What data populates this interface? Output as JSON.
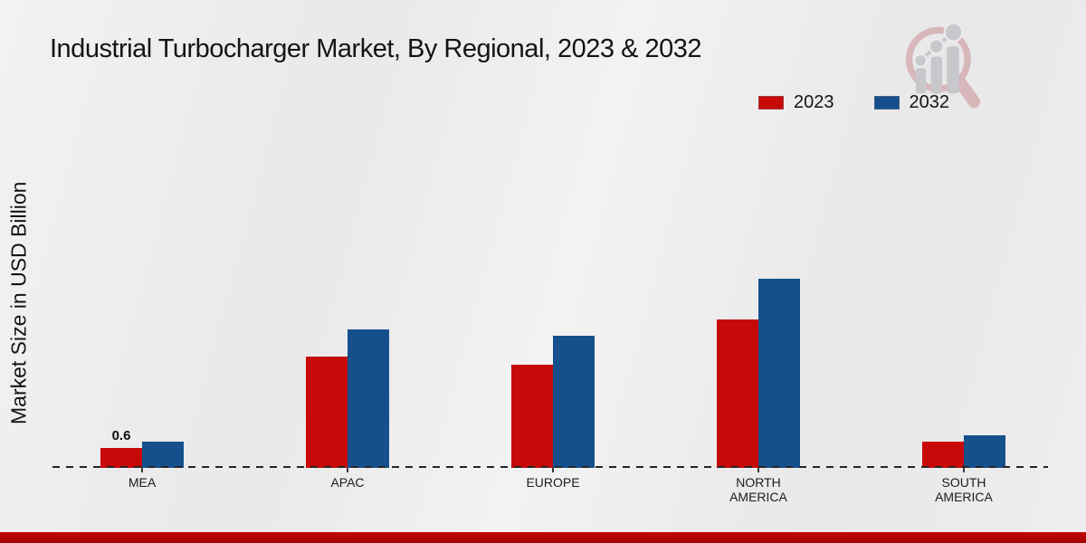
{
  "header": {
    "title": "Industrial Turbocharger Market, By Regional, 2023 & 2032"
  },
  "axes": {
    "ylabel": "Market Size in USD Billion"
  },
  "legend": {
    "items": [
      {
        "label": "2023",
        "color": "#c70909"
      },
      {
        "label": "2032",
        "color": "#15508d"
      }
    ]
  },
  "watermark_icon": "magnifier-growth-chart-logo",
  "colors": {
    "series_2023": "#c70909",
    "series_2032": "#15508d",
    "footer_strip": "#b00404",
    "baseline": "#252525"
  },
  "chart_data": {
    "type": "bar",
    "title": "Industrial Turbocharger Market, By Regional, 2023 & 2032",
    "xlabel": "",
    "ylabel": "Market Size in USD Billion",
    "categories": [
      "MEA",
      "APAC",
      "EUROPE",
      "NORTH AMERICA",
      "SOUTH AMERICA"
    ],
    "series": [
      {
        "name": "2023",
        "color": "#c70909",
        "values": [
          0.6,
          3.35,
          3.11,
          4.47,
          0.79
        ]
      },
      {
        "name": "2032",
        "color": "#15508d",
        "values": [
          0.79,
          4.17,
          3.98,
          5.7,
          0.98
        ]
      }
    ],
    "data_labels": [
      {
        "category": "MEA",
        "series": "2023",
        "text": "0.6"
      }
    ],
    "ylim": [
      0,
      10
    ],
    "grid": false,
    "y_ticks_visible": false,
    "legend_position": "top-right",
    "baseline_style": "dashed"
  }
}
